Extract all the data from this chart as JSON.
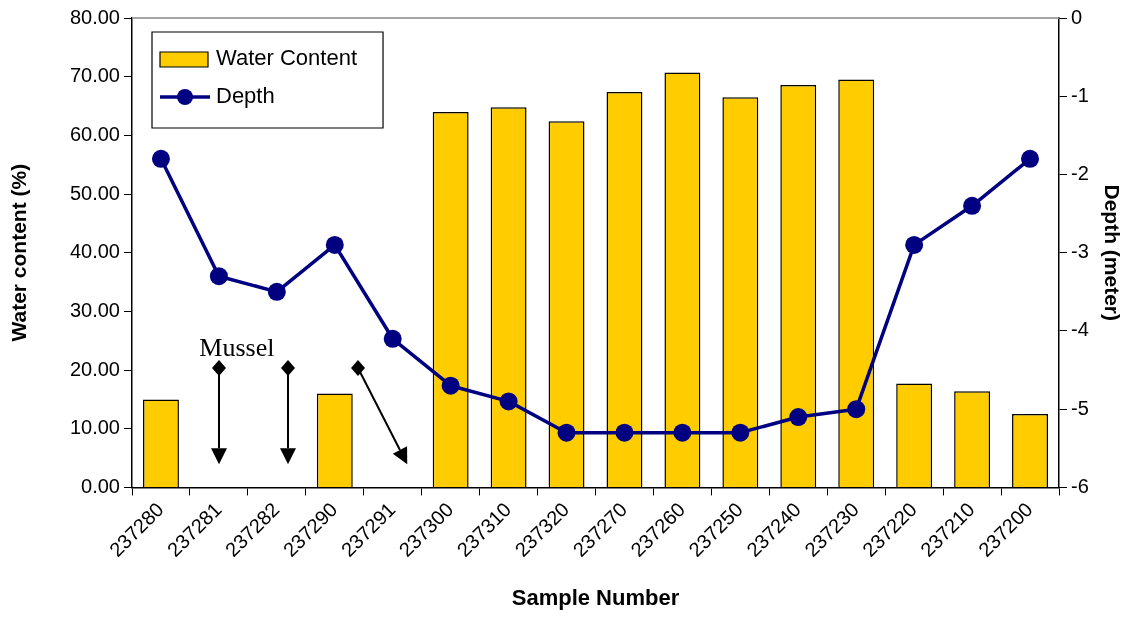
{
  "chart_data": {
    "type": "bar",
    "xlabel": "Sample Number",
    "ylabel": "Water content (%)",
    "y2label": "Depth (meter)",
    "categories": [
      "237280",
      "237281",
      "237282",
      "237290",
      "237291",
      "237300",
      "237310",
      "237320",
      "237270",
      "237260",
      "237250",
      "237240",
      "237230",
      "237220",
      "237210",
      "237200"
    ],
    "series": [
      {
        "name": "Water Content",
        "color": "#ffcc00",
        "values": [
          15.0,
          null,
          null,
          16.0,
          null,
          64.0,
          64.8,
          62.4,
          67.4,
          70.7,
          66.5,
          68.6,
          69.5,
          17.7,
          16.4,
          12.5
        ]
      },
      {
        "name": "Depth",
        "type": "line",
        "axis": "y2",
        "color": "#000080",
        "marker": "circle",
        "values": [
          -1.8,
          -3.3,
          -3.5,
          -2.9,
          -4.1,
          -4.7,
          -4.9,
          -5.3,
          -5.3,
          -5.3,
          -5.3,
          -5.1,
          -5.0,
          -2.9,
          -2.4,
          -1.8
        ]
      }
    ],
    "ylim": [
      0,
      80
    ],
    "yticks": [
      {
        "value": 0,
        "label": "0.00"
      },
      {
        "value": 10,
        "label": "10.00"
      },
      {
        "value": 20,
        "label": "20.00"
      },
      {
        "value": 30,
        "label": "30.00"
      },
      {
        "value": 40,
        "label": "40.00"
      },
      {
        "value": 50,
        "label": "50.00"
      },
      {
        "value": 60,
        "label": "60.00"
      },
      {
        "value": 70,
        "label": "70.00"
      },
      {
        "value": 80,
        "label": "80.00"
      }
    ],
    "y2lim": [
      -6,
      0
    ],
    "y2ticks": [
      -6,
      -5,
      -4,
      -3,
      -2,
      -1,
      0
    ],
    "annotations": [
      "Mussel"
    ],
    "legend": "top left",
    "grid": false
  }
}
